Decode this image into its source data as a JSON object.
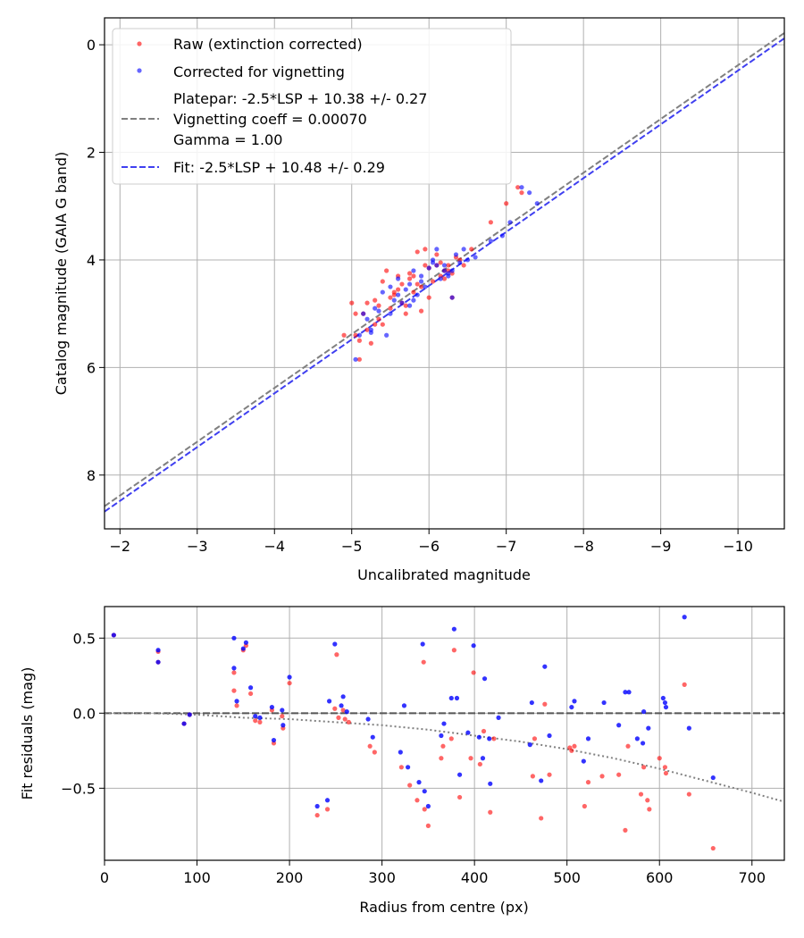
{
  "colors": {
    "raw": "#ff0000",
    "corrected": "#0000ff",
    "platepar_line": "#808080",
    "fit_line": "#3f3ff0",
    "residual_zero": "#555555",
    "residual_trend": "#808080"
  },
  "chart_data": [
    {
      "type": "scatter",
      "xlabel": "Uncalibrated magnitude",
      "ylabel": "Catalog magnitude (GAIA G band)",
      "xlim": [
        -1.8,
        -10.6
      ],
      "ylim": [
        9.0,
        -0.5
      ],
      "xticks": [
        -2,
        -3,
        -4,
        -5,
        -6,
        -7,
        -8,
        -9,
        -10
      ],
      "xtick_labels": [
        "−2",
        "−3",
        "−4",
        "−5",
        "−6",
        "−7",
        "−8",
        "−9",
        "−10"
      ],
      "yticks": [
        0,
        2,
        4,
        6,
        8
      ],
      "ytick_labels": [
        "0",
        "2",
        "4",
        "6",
        "8"
      ],
      "grid": true,
      "legend": {
        "position": "top-left",
        "raw": "Raw (extinction corrected)",
        "corrected": "Corrected for vignetting",
        "platepar_lines": [
          "Platepar: -2.5*LSP + 10.38 +/- 0.27",
          "Vignetting coeff = 0.00070",
          "Gamma = 1.00"
        ],
        "fit": "Fit: -2.5*LSP + 10.48 +/- 0.29"
      },
      "series": [
        {
          "name": "Raw (extinction corrected)",
          "x": [
            -4.9,
            -5.0,
            -5.05,
            -5.1,
            -5.2,
            -5.25,
            -5.3,
            -5.35,
            -5.4,
            -5.45,
            -5.5,
            -5.55,
            -5.6,
            -5.65,
            -5.7,
            -5.75,
            -5.8,
            -5.85,
            -5.9,
            -5.95,
            -6.0,
            -6.05,
            -6.1,
            -6.15,
            -6.2,
            -6.25,
            -6.3,
            -6.35,
            -6.45,
            -6.55,
            -6.8,
            -7.0,
            -7.15,
            -7.2,
            -5.1,
            -5.2,
            -5.3,
            -5.5,
            -5.6,
            -5.7,
            -5.8,
            -5.9,
            -6.0,
            -6.1,
            -6.2,
            -6.3,
            -5.05,
            -5.4,
            -5.65,
            -5.85,
            -6.25,
            -6.4,
            -5.15,
            -5.35,
            -5.55,
            -5.75,
            -5.95,
            -6.15
          ],
          "y": [
            5.4,
            4.8,
            5.0,
            5.85,
            5.3,
            5.55,
            4.75,
            5.1,
            4.4,
            4.2,
            4.9,
            4.65,
            4.3,
            4.45,
            4.85,
            4.25,
            4.6,
            3.85,
            4.95,
            3.8,
            4.15,
            4.4,
            3.9,
            4.05,
            4.35,
            4.1,
            4.25,
            3.95,
            4.1,
            3.8,
            3.3,
            2.95,
            2.65,
            2.75,
            5.5,
            4.8,
            5.2,
            4.7,
            4.55,
            5.0,
            4.3,
            4.5,
            4.7,
            4.1,
            4.2,
            4.7,
            5.4,
            5.2,
            4.8,
            4.45,
            4.2,
            4.0,
            5.0,
            4.85,
            4.6,
            4.35,
            4.1,
            4.3
          ]
        },
        {
          "name": "Corrected for vignetting",
          "x": [
            -5.05,
            -5.1,
            -5.2,
            -5.25,
            -5.3,
            -5.4,
            -5.5,
            -5.55,
            -5.6,
            -5.65,
            -5.7,
            -5.75,
            -5.8,
            -5.85,
            -5.9,
            -5.95,
            -6.0,
            -6.05,
            -6.1,
            -6.15,
            -6.2,
            -6.25,
            -6.3,
            -6.35,
            -6.4,
            -6.5,
            -6.6,
            -6.8,
            -6.95,
            -7.05,
            -7.2,
            -7.3,
            -7.4,
            -5.15,
            -5.35,
            -5.45,
            -5.6,
            -5.75,
            -5.9,
            -6.05,
            -6.2,
            -6.3,
            -6.45,
            -5.8,
            -5.5,
            -6.1,
            -5.25,
            -6.25
          ],
          "y": [
            5.85,
            5.4,
            5.1,
            5.3,
            4.9,
            4.6,
            4.5,
            4.75,
            4.35,
            4.8,
            4.55,
            4.45,
            4.2,
            4.65,
            4.3,
            4.5,
            4.15,
            4.0,
            3.8,
            4.35,
            4.1,
            4.25,
            4.2,
            3.9,
            4.05,
            4.0,
            3.95,
            3.65,
            3.55,
            3.3,
            2.65,
            2.75,
            2.95,
            5.0,
            4.95,
            5.4,
            4.65,
            4.85,
            4.4,
            4.05,
            4.2,
            4.7,
            3.8,
            4.75,
            5.0,
            4.1,
            5.35,
            4.3
          ]
        },
        {
          "name": "Platepar: -2.5*LSP + 10.38 +/- 0.27",
          "x": [
            -1.8,
            -10.6
          ],
          "y": [
            8.58,
            -0.22
          ]
        },
        {
          "name": "Fit: -2.5*LSP + 10.48 +/- 0.29",
          "x": [
            -1.8,
            -10.6
          ],
          "y": [
            8.68,
            -0.12
          ]
        }
      ]
    },
    {
      "type": "scatter",
      "xlabel": "Radius from centre (px)",
      "ylabel": "Fit residuals (mag)",
      "xlim": [
        0,
        735
      ],
      "ylim": [
        -0.98,
        0.71
      ],
      "xticks": [
        0,
        100,
        200,
        300,
        400,
        500,
        600,
        700
      ],
      "xtick_labels": [
        "0",
        "100",
        "200",
        "300",
        "400",
        "500",
        "600",
        "700"
      ],
      "yticks": [
        0.5,
        0.0,
        -0.5
      ],
      "ytick_labels": [
        "0.5",
        "0.0",
        "−0.5"
      ],
      "grid": true,
      "series": [
        {
          "name": "Raw (extinction corrected)",
          "x": [
            10,
            58,
            58,
            86,
            92,
            140,
            140,
            143,
            150,
            153,
            158,
            163,
            168,
            181,
            183,
            192,
            193,
            200,
            230,
            241,
            249,
            251,
            253,
            258,
            260,
            264,
            287,
            292,
            321,
            330,
            338,
            345,
            346,
            350,
            364,
            366,
            375,
            378,
            384,
            396,
            399,
            406,
            410,
            417,
            421,
            463,
            465,
            472,
            476,
            481,
            503,
            505,
            508,
            519,
            523,
            538,
            556,
            563,
            566,
            580,
            583,
            587,
            589,
            600,
            606,
            607,
            627,
            632,
            658
          ],
          "y": [
            0.52,
            0.41,
            0.34,
            -0.07,
            -0.01,
            0.27,
            0.15,
            0.05,
            0.42,
            0.45,
            0.13,
            -0.05,
            -0.06,
            0.02,
            -0.2,
            -0.02,
            -0.1,
            0.2,
            -0.68,
            -0.64,
            0.03,
            0.39,
            -0.03,
            0.02,
            -0.04,
            -0.06,
            -0.22,
            -0.26,
            -0.36,
            -0.48,
            -0.58,
            0.34,
            -0.64,
            -0.75,
            -0.3,
            -0.22,
            -0.17,
            0.42,
            -0.56,
            -0.3,
            0.27,
            -0.34,
            -0.12,
            -0.66,
            -0.17,
            -0.42,
            -0.17,
            -0.7,
            0.06,
            -0.41,
            -0.23,
            -0.25,
            -0.22,
            -0.62,
            -0.46,
            -0.42,
            -0.41,
            -0.78,
            -0.22,
            -0.54,
            -0.36,
            -0.58,
            -0.64,
            -0.3,
            -0.36,
            -0.4,
            0.19,
            -0.54,
            -0.9
          ]
        },
        {
          "name": "Corrected for vignetting",
          "x": [
            10,
            58,
            58,
            86,
            92,
            140,
            140,
            143,
            150,
            153,
            158,
            163,
            168,
            181,
            183,
            192,
            193,
            200,
            230,
            241,
            243,
            249,
            256,
            258,
            262,
            285,
            290,
            320,
            324,
            328,
            340,
            344,
            346,
            350,
            364,
            367,
            375,
            378,
            381,
            384,
            393,
            399,
            405,
            409,
            411,
            416,
            417,
            426,
            460,
            462,
            472,
            476,
            481,
            505,
            508,
            518,
            523,
            540,
            556,
            563,
            567,
            576,
            582,
            583,
            588,
            604,
            606,
            607,
            627,
            632,
            658
          ],
          "y": [
            0.52,
            0.42,
            0.34,
            -0.07,
            -0.01,
            0.5,
            0.3,
            0.08,
            0.43,
            0.47,
            0.17,
            -0.02,
            -0.03,
            0.04,
            -0.18,
            0.02,
            -0.08,
            0.24,
            -0.62,
            -0.58,
            0.08,
            0.46,
            0.05,
            0.11,
            0.01,
            -0.04,
            -0.16,
            -0.26,
            0.05,
            -0.36,
            -0.46,
            0.46,
            -0.52,
            -0.62,
            -0.15,
            -0.07,
            0.1,
            0.56,
            0.1,
            -0.41,
            -0.13,
            0.45,
            -0.16,
            -0.3,
            0.23,
            -0.17,
            -0.47,
            -0.03,
            -0.21,
            0.07,
            -0.45,
            0.31,
            -0.15,
            0.04,
            0.08,
            -0.32,
            -0.17,
            0.07,
            -0.08,
            0.14,
            0.14,
            -0.17,
            -0.2,
            0.01,
            -0.1,
            0.1,
            0.07,
            0.04,
            0.64,
            -0.1,
            -0.43
          ]
        },
        {
          "name": "Zero residual",
          "x": [
            0,
            735
          ],
          "y": [
            0,
            0
          ]
        },
        {
          "name": "Vignetting trend",
          "x": [
            0,
            50,
            100,
            150,
            200,
            250,
            300,
            350,
            400,
            450,
            500,
            550,
            600,
            650,
            700,
            735
          ],
          "y": [
            0.0,
            0.0,
            -0.01,
            -0.03,
            -0.04,
            -0.06,
            -0.08,
            -0.11,
            -0.15,
            -0.19,
            -0.24,
            -0.3,
            -0.37,
            -0.45,
            -0.53,
            -0.59
          ]
        }
      ]
    }
  ]
}
